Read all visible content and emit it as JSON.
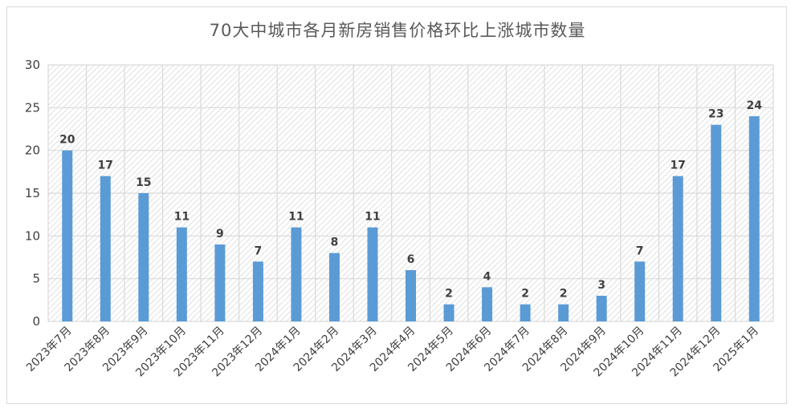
{
  "chart_data": {
    "type": "bar",
    "title": "70大中城市各月新房销售价格环比上涨城市数量",
    "xlabel": "",
    "ylabel": "",
    "ylim": [
      0,
      30
    ],
    "yticks": [
      "0",
      "5",
      "10",
      "15",
      "20",
      "25",
      "30"
    ],
    "grid": true,
    "legend": "none",
    "bar_color": "#5b9bd5",
    "categories": [
      "2023年7月",
      "2023年8月",
      "2023年9月",
      "2023年10月",
      "2023年11月",
      "2023年12月",
      "2024年1月",
      "2024年2月",
      "2024年3月",
      "2024年4月",
      "2024年5月",
      "2024年6月",
      "2024年7月",
      "2024年8月",
      "2024年9月",
      "2024年10月",
      "2024年11月",
      "2024年12月",
      "2025年1月"
    ],
    "values": [
      20,
      17,
      15,
      11,
      9,
      7,
      11,
      8,
      11,
      6,
      2,
      4,
      2,
      2,
      3,
      7,
      17,
      23,
      24
    ]
  }
}
